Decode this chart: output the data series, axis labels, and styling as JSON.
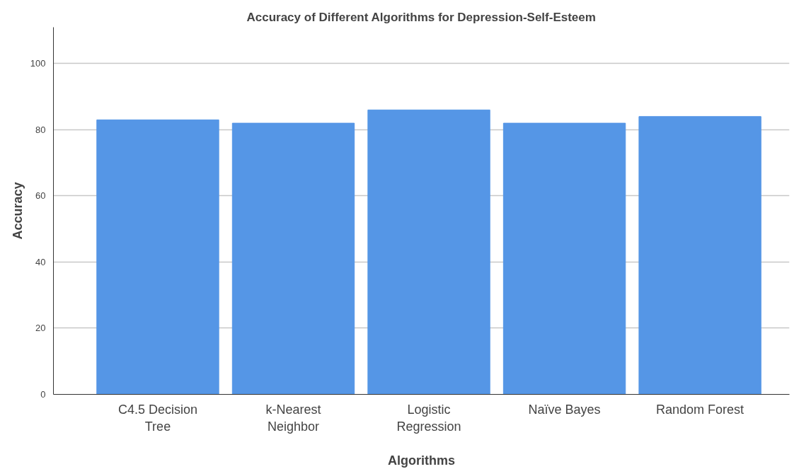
{
  "chart_data": {
    "type": "bar",
    "title": "Accuracy of Different Algorithms for Depression-Self-Esteem",
    "xlabel": "Algorithms",
    "ylabel": "Accuracy",
    "categories": [
      "C4.5 Decision Tree",
      "k-Nearest Neighbor",
      "Logistic Regression",
      "Naïve Bayes",
      "Random Forest"
    ],
    "values": [
      83,
      82,
      86,
      82,
      84
    ],
    "color": "#5596e6",
    "ylim": [
      0,
      111
    ],
    "yticks": [
      0,
      20,
      40,
      60,
      80,
      100
    ],
    "grid": "y"
  }
}
